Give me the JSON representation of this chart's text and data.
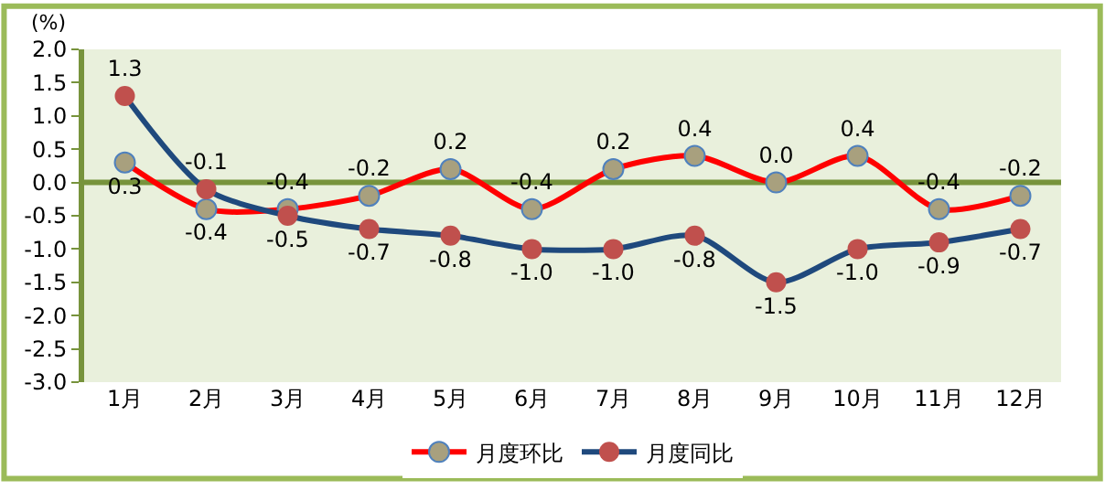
{
  "chart_data": {
    "type": "line",
    "ylabel": "(%)",
    "categories": [
      "1月",
      "2月",
      "3月",
      "4月",
      "5月",
      "6月",
      "7月",
      "8月",
      "9月",
      "10月",
      "11月",
      "12月"
    ],
    "series": [
      {
        "name": "月度环比",
        "color": "#ff0000",
        "colors": [
          "#a8a07e",
          "#a8a07e",
          "#a8a07e",
          "#a8a07e",
          "#a8a07e",
          "#a8a07e",
          "#a8a07e",
          "#a8a07e",
          "#a8a07e",
          "#a8a07e",
          "#a8a07e",
          "#a8a07e"
        ],
        "values": [
          0.3,
          -0.4,
          -0.4,
          -0.2,
          0.2,
          -0.4,
          0.2,
          0.4,
          0.0,
          0.4,
          -0.4,
          -0.2
        ],
        "value_labels": [
          "0.3",
          "-0.4",
          "-0.4",
          "-0.2",
          "0.2",
          "-0.4",
          "0.2",
          "0.4",
          "0.0",
          "0.4",
          "-0.4",
          "-0.2"
        ]
      },
      {
        "name": "月度同比",
        "color": "#1f497d",
        "colors": [
          "#c0504d",
          "#c0504d",
          "#c0504d",
          "#c0504d",
          "#c0504d",
          "#c0504d",
          "#c0504d",
          "#c0504d",
          "#c0504d",
          "#c0504d",
          "#c0504d",
          "#c0504d"
        ],
        "values": [
          1.3,
          -0.1,
          -0.5,
          -0.7,
          -0.8,
          -1.0,
          -1.0,
          -0.8,
          -1.5,
          -1.0,
          -0.9,
          -0.7
        ],
        "value_labels": [
          "1.3",
          "-0.1",
          "-0.5",
          "-0.7",
          "-0.8",
          "-1.0",
          "-1.0",
          "-0.8",
          "-1.5",
          "-1.0",
          "-0.9",
          "-0.7"
        ]
      }
    ],
    "ylim": [
      -3.0,
      2.0
    ],
    "yticks": [
      {
        "value": 2.0,
        "label": "2.0"
      },
      {
        "value": 1.5,
        "label": "1.5"
      },
      {
        "value": 1.0,
        "label": "1.0"
      },
      {
        "value": 0.5,
        "label": "0.5"
      },
      {
        "value": 0.0,
        "label": "0.0"
      },
      {
        "value": -0.5,
        "label": "-0.5"
      },
      {
        "value": -1.0,
        "label": "-1.0"
      },
      {
        "value": -1.5,
        "label": "-1.5"
      },
      {
        "value": -2.0,
        "label": "-2.0"
      },
      {
        "value": -2.5,
        "label": "-2.5"
      },
      {
        "value": -3.0,
        "label": "-3.0"
      }
    ],
    "ref_lines": [
      {
        "axis": "y",
        "value": 0.0,
        "color": "#77933c",
        "line_style": "solid"
      }
    ],
    "grid": false,
    "legend": "bottom",
    "marker": "circle",
    "line_style": "solid"
  }
}
